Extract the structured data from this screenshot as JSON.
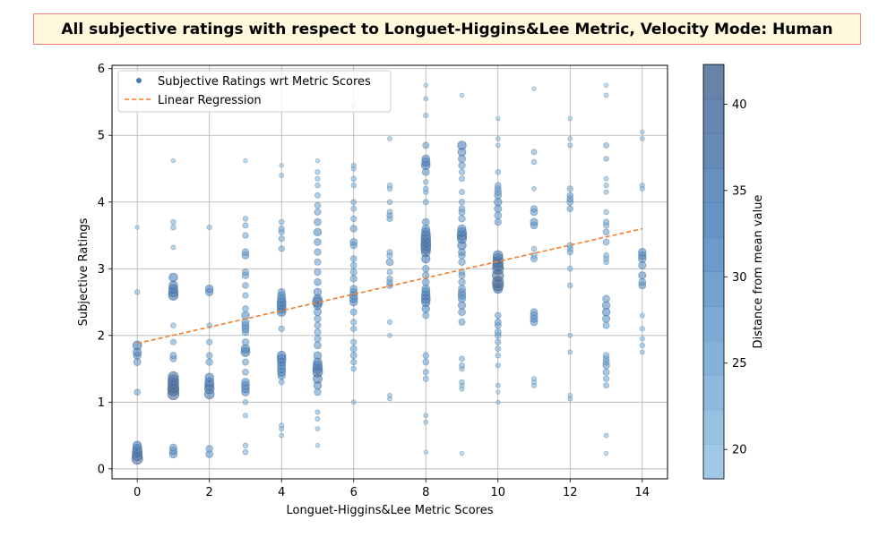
{
  "chart_data": {
    "type": "scatter",
    "title": "All subjective ratings with respect to Longuet-Higgins&Lee Metric, Velocity Mode: Human",
    "xlabel": "Longuet-Higgins&Lee Metric Scores",
    "ylabel": "Subjective Ratings",
    "xlim": [
      -0.7,
      14.7
    ],
    "ylim": [
      -0.15,
      6.05
    ],
    "xticks": [
      0,
      2,
      4,
      6,
      8,
      10,
      12,
      14
    ],
    "yticks": [
      0,
      1,
      2,
      3,
      4,
      5,
      6
    ],
    "grid": true,
    "legend_position": "top-left",
    "series": [
      {
        "name": "Subjective Ratings wrt Metric Scores",
        "kind": "scatter",
        "point_groups": [
          {
            "x": 0,
            "y": [
              0.15,
              0.2,
              0.25,
              0.3,
              0.35,
              1.15,
              1.6,
              1.7,
              1.75,
              1.85,
              2.65,
              3.62
            ],
            "d": [
              40,
              38,
              37,
              35,
              33,
              25,
              28,
              30,
              32,
              34,
              22,
              19
            ]
          },
          {
            "x": 1,
            "y": [
              0.22,
              0.27,
              0.32,
              1.12,
              1.18,
              1.22,
              1.28,
              1.33,
              1.38,
              1.65,
              1.7,
              1.9,
              2.15,
              2.6,
              2.65,
              2.7,
              2.75,
              2.87,
              3.32,
              3.62,
              3.7,
              4.62
            ],
            "d": [
              30,
              30,
              28,
              41,
              41,
              40,
              40,
              39,
              38,
              26,
              26,
              24,
              22,
              36,
              36,
              34,
              33,
              33,
              20,
              22,
              22,
              19
            ]
          },
          {
            "x": 2,
            "y": [
              0.22,
              0.3,
              1.12,
              1.2,
              1.25,
              1.3,
              1.37,
              1.6,
              1.7,
              1.9,
              2.15,
              2.65,
              2.7,
              3.62
            ],
            "d": [
              28,
              27,
              36,
              36,
              35,
              34,
              33,
              27,
              25,
              24,
              22,
              30,
              30,
              21
            ]
          },
          {
            "x": 3,
            "y": [
              0.25,
              0.35,
              0.8,
              1.0,
              1.15,
              1.2,
              1.25,
              1.3,
              1.45,
              1.6,
              1.75,
              1.8,
              1.9,
              2.05,
              2.1,
              2.15,
              2.2,
              2.3,
              2.4,
              2.6,
              2.75,
              2.9,
              2.95,
              3.2,
              3.25,
              3.5,
              3.65,
              3.75,
              4.62
            ],
            "d": [
              22,
              22,
              21,
              22,
              30,
              31,
              31,
              30,
              25,
              26,
              34,
              33,
              27,
              27,
              29,
              29,
              28,
              30,
              25,
              24,
              25,
              27,
              26,
              28,
              27,
              24,
              23,
              22,
              19
            ]
          },
          {
            "x": 4,
            "y": [
              0.5,
              0.6,
              0.65,
              1.3,
              1.4,
              1.45,
              1.5,
              1.55,
              1.6,
              1.65,
              1.7,
              2.1,
              2.35,
              2.4,
              2.45,
              2.5,
              2.55,
              2.6,
              2.65,
              3.3,
              3.45,
              3.55,
              3.6,
              3.7,
              4.4,
              4.55
            ],
            "d": [
              20,
              21,
              21,
              23,
              30,
              31,
              32,
              31,
              32,
              34,
              33,
              24,
              33,
              34,
              34,
              34,
              32,
              30,
              28,
              24,
              24,
              24,
              24,
              22,
              20,
              19
            ]
          },
          {
            "x": 5,
            "y": [
              0.35,
              0.6,
              0.75,
              0.85,
              1.15,
              1.25,
              1.35,
              1.45,
              1.5,
              1.55,
              1.6,
              1.7,
              1.85,
              1.95,
              2.05,
              2.15,
              2.25,
              2.35,
              2.45,
              2.5,
              2.55,
              2.65,
              2.8,
              2.95,
              3.1,
              3.25,
              3.4,
              3.55,
              3.7,
              3.85,
              3.95,
              4.1,
              4.25,
              4.35,
              4.45,
              4.62
            ],
            "d": [
              19,
              20,
              21,
              21,
              27,
              30,
              34,
              37,
              36,
              35,
              33,
              30,
              28,
              27,
              26,
              26,
              27,
              29,
              32,
              38,
              33,
              30,
              28,
              27,
              26,
              27,
              28,
              30,
              28,
              26,
              25,
              23,
              22,
              21,
              21,
              19
            ]
          },
          {
            "x": 6,
            "y": [
              1.0,
              1.5,
              1.6,
              1.7,
              1.8,
              1.9,
              2.1,
              2.2,
              2.35,
              2.5,
              2.55,
              2.6,
              2.65,
              2.7,
              2.85,
              2.95,
              3.05,
              3.15,
              3.35,
              3.4,
              3.6,
              3.75,
              3.9,
              4.0,
              4.25,
              4.35,
              4.5,
              4.55,
              5.45
            ],
            "d": [
              20,
              22,
              24,
              26,
              26,
              24,
              24,
              24,
              26,
              30,
              31,
              30,
              29,
              28,
              27,
              26,
              25,
              25,
              27,
              28,
              27,
              24,
              23,
              23,
              22,
              22,
              21,
              21,
              19
            ]
          },
          {
            "x": 7,
            "y": [
              1.05,
              1.1,
              2.0,
              2.2,
              2.75,
              2.8,
              2.85,
              2.95,
              3.1,
              3.2,
              3.25,
              3.75,
              3.8,
              3.85,
              4.0,
              4.2,
              4.25,
              4.95
            ],
            "d": [
              20,
              20,
              20,
              21,
              25,
              25,
              24,
              23,
              28,
              24,
              23,
              24,
              24,
              23,
              22,
              22,
              22,
              20
            ]
          },
          {
            "x": 8,
            "y": [
              0.25,
              0.7,
              0.8,
              1.35,
              1.45,
              1.6,
              1.7,
              2.3,
              2.4,
              2.5,
              2.55,
              2.6,
              2.65,
              2.7,
              2.8,
              2.9,
              3.0,
              3.15,
              3.25,
              3.3,
              3.35,
              3.4,
              3.45,
              3.5,
              3.55,
              3.6,
              3.7,
              4.0,
              4.15,
              4.2,
              4.3,
              4.45,
              4.55,
              4.6,
              4.65,
              4.85,
              5.3,
              5.55,
              5.75
            ],
            "d": [
              19,
              20,
              20,
              23,
              24,
              25,
              25,
              26,
              30,
              33,
              34,
              33,
              32,
              30,
              28,
              27,
              27,
              33,
              34,
              36,
              37,
              36,
              36,
              35,
              33,
              30,
              28,
              23,
              22,
              22,
              22,
              28,
              33,
              33,
              30,
              26,
              21,
              20,
              19
            ]
          },
          {
            "x": 9,
            "y": [
              0.23,
              1.2,
              1.25,
              1.3,
              1.5,
              1.55,
              1.65,
              2.2,
              2.35,
              2.45,
              2.55,
              2.6,
              2.65,
              2.7,
              2.8,
              2.9,
              2.95,
              3.1,
              3.2,
              3.25,
              3.35,
              3.45,
              3.5,
              3.55,
              3.6,
              3.75,
              3.85,
              3.9,
              4.0,
              4.15,
              4.35,
              4.45,
              4.55,
              4.65,
              4.75,
              4.85,
              5.6
            ],
            "d": [
              19,
              21,
              21,
              22,
              22,
              23,
              23,
              26,
              28,
              29,
              29,
              30,
              29,
              28,
              27,
              26,
              25,
              27,
              27,
              28,
              33,
              35,
              36,
              34,
              31,
              27,
              26,
              25,
              24,
              23,
              23,
              24,
              27,
              29,
              31,
              33,
              19
            ]
          },
          {
            "x": 10,
            "y": [
              1.0,
              1.15,
              1.25,
              1.55,
              1.7,
              1.8,
              1.9,
              2.0,
              2.05,
              2.15,
              2.2,
              2.3,
              2.7,
              2.75,
              2.8,
              2.9,
              3.0,
              3.05,
              3.1,
              3.15,
              3.2,
              3.7,
              3.8,
              3.9,
              4.0,
              4.1,
              4.15,
              4.2,
              4.25,
              4.45,
              4.85,
              4.95,
              5.25
            ],
            "d": [
              19,
              19,
              20,
              21,
              22,
              23,
              24,
              25,
              26,
              26,
              26,
              25,
              35,
              40,
              41,
              41,
              40,
              39,
              38,
              37,
              36,
              27,
              28,
              29,
              30,
              28,
              27,
              26,
              25,
              22,
              20,
              20,
              19
            ]
          },
          {
            "x": 11,
            "y": [
              1.25,
              1.3,
              1.35,
              2.2,
              2.25,
              2.3,
              2.35,
              3.15,
              3.2,
              3.3,
              3.65,
              3.7,
              3.85,
              3.9,
              4.2,
              4.6,
              4.75,
              5.7
            ],
            "d": [
              21,
              21,
              21,
              28,
              29,
              29,
              28,
              26,
              24,
              22,
              28,
              29,
              28,
              26,
              20,
              22,
              23,
              19
            ]
          },
          {
            "x": 12,
            "y": [
              1.05,
              1.1,
              1.75,
              2.0,
              2.75,
              3.0,
              3.25,
              3.3,
              3.35,
              3.9,
              4.0,
              4.05,
              4.1,
              4.2,
              4.85,
              4.95,
              5.25
            ],
            "d": [
              20,
              20,
              20,
              20,
              22,
              22,
              24,
              24,
              24,
              25,
              26,
              26,
              25,
              24,
              21,
              20,
              19
            ]
          },
          {
            "x": 13,
            "y": [
              0.23,
              0.5,
              1.25,
              1.35,
              1.45,
              1.55,
              1.6,
              1.65,
              1.7,
              2.15,
              2.25,
              2.35,
              2.45,
              2.55,
              3.1,
              3.15,
              3.2,
              3.4,
              3.55,
              3.65,
              3.7,
              3.85,
              4.15,
              4.25,
              4.35,
              4.65,
              4.85,
              5.6,
              5.75
            ],
            "d": [
              19,
              20,
              23,
              24,
              26,
              27,
              26,
              25,
              25,
              26,
              29,
              30,
              30,
              28,
              22,
              23,
              23,
              25,
              25,
              24,
              24,
              22,
              21,
              21,
              20,
              22,
              23,
              20,
              19
            ]
          },
          {
            "x": 14,
            "y": [
              1.75,
              1.85,
              1.95,
              2.1,
              2.3,
              2.75,
              2.8,
              2.9,
              3.05,
              3.15,
              3.2,
              3.25,
              4.2,
              4.25,
              4.95,
              5.05
            ],
            "d": [
              20,
              21,
              21,
              21,
              20,
              28,
              28,
              29,
              29,
              30,
              30,
              30,
              21,
              21,
              20,
              19
            ]
          }
        ]
      },
      {
        "name": "Linear Regression",
        "kind": "line",
        "style": "dashed",
        "color": "#f57c2a",
        "x": [
          0,
          14
        ],
        "y": [
          1.88,
          3.6
        ]
      }
    ],
    "colorbar": {
      "label": "Distance from mean value",
      "min": 18.3,
      "max": 42.3,
      "ticks": [
        20,
        25,
        30,
        35,
        40
      ],
      "levels": 12,
      "color_low": "#93c4e4",
      "color_high": "#4d6a95"
    }
  }
}
